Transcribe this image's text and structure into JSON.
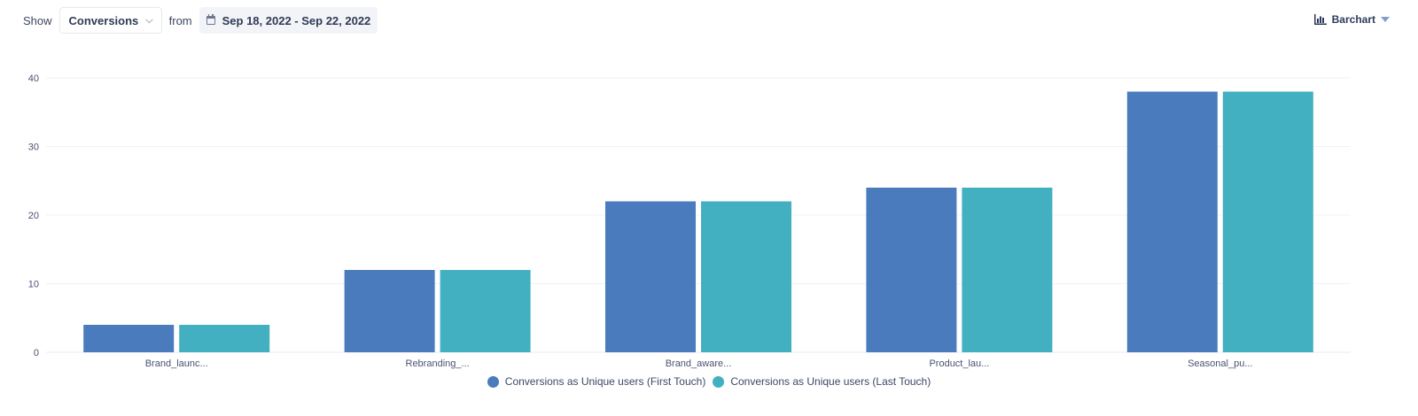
{
  "toolbar": {
    "show_label": "Show",
    "metric_value": "Conversions",
    "from_label": "from",
    "date_range": "Sep 18, 2022 - Sep 22, 2022",
    "chart_type_label": "Barchart"
  },
  "icons": {
    "metric_dropdown": "chevron-down-icon",
    "date": "calendar-icon",
    "chart_type": "bar-chart-icon",
    "chart_type_dropdown": "caret-down-icon"
  },
  "chart_data": {
    "type": "bar",
    "categories": [
      "Brand_launc...",
      "Rebranding_...",
      "Brand_aware...",
      "Product_lau...",
      "Seasonal_pu..."
    ],
    "series": [
      {
        "name": "Conversions as Unique users (First Touch)",
        "values": [
          4,
          12,
          22,
          24,
          38
        ],
        "color": "#4a7bbd"
      },
      {
        "name": "Conversions as Unique users (Last Touch)",
        "values": [
          4,
          12,
          22,
          24,
          38
        ],
        "color": "#43b0c1"
      }
    ],
    "ylim": [
      0,
      40
    ],
    "yticks": [
      0,
      10,
      20,
      30,
      40
    ],
    "grid": true,
    "legend_position": "bottom-center",
    "xlabel": "",
    "ylabel": "",
    "title": ""
  }
}
